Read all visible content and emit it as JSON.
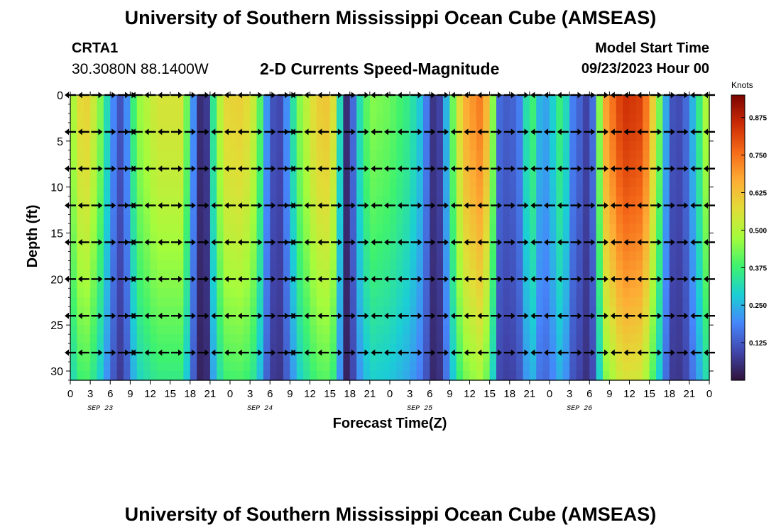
{
  "header": {
    "title": "University of Southern Mississippi Ocean Cube (AMSEAS)",
    "station_id": "CRTA1",
    "coordinates": "30.3080N  88.1400W",
    "subtitle": "2-D Currents Speed-Magnitude",
    "model_start_label": "Model Start Time",
    "model_start_value": "09/23/2023 Hour 00"
  },
  "footer": {
    "title": "University of Southern Mississippi Ocean Cube (AMSEAS)"
  },
  "colors": {
    "colormap": [
      "#30123b",
      "#4146ac",
      "#4686fb",
      "#1bcfd4",
      "#3ef26f",
      "#a4fc3c",
      "#e1dd37",
      "#fdad35",
      "#f66b19",
      "#cb2a04",
      "#7a0403"
    ],
    "arrow": "#000000",
    "axis": "#000000"
  },
  "chart_data": {
    "type": "heatmap",
    "title": "2-D Currents Speed-Magnitude",
    "xlabel": "Forecast Time(Z)",
    "ylabel": "Depth (ft)",
    "colorbar_label": "Knots",
    "colorbar_range": [
      0.0,
      0.95
    ],
    "colorbar_ticks": [
      0.125,
      0.25,
      0.375,
      0.5,
      0.625,
      0.75,
      0.875
    ],
    "colorbar_tick_labels": [
      "0.125",
      "0.250",
      "0.375",
      "0.500",
      "0.625",
      "0.750",
      "0.875"
    ],
    "x_hours_range": [
      0,
      96
    ],
    "y_range": [
      0,
      31
    ],
    "y_ticks": [
      0,
      5,
      10,
      15,
      20,
      25,
      30
    ],
    "y_tick_labels": [
      "0",
      "5",
      "10",
      "15",
      "20",
      "25",
      "30"
    ],
    "x_ticks_hours": [
      0,
      3,
      6,
      9,
      12,
      15,
      18,
      21,
      24,
      27,
      30,
      33,
      36,
      39,
      42,
      45,
      48,
      51,
      54,
      57,
      60,
      63,
      66,
      69,
      72,
      75,
      78,
      81,
      84,
      87,
      90,
      93,
      96
    ],
    "x_tick_labels": [
      "0",
      "3",
      "6",
      "9",
      "12",
      "15",
      "18",
      "21",
      "0",
      "3",
      "6",
      "9",
      "12",
      "15",
      "18",
      "21",
      "0",
      "3",
      "6",
      "9",
      "12",
      "15",
      "18",
      "21",
      "0",
      "3",
      "6",
      "9",
      "12",
      "15",
      "18",
      "21",
      "0"
    ],
    "date_labels": [
      {
        "hour": 4.5,
        "text": "SEP 23"
      },
      {
        "hour": 28.5,
        "text": "SEP 24"
      },
      {
        "hour": 52.5,
        "text": "SEP 25"
      },
      {
        "hour": 76.5,
        "text": "SEP 26"
      }
    ],
    "arrow_depths": [
      0,
      4,
      8,
      12,
      16,
      20,
      24,
      28
    ],
    "arrow_hours": [
      0,
      2,
      4,
      6,
      8,
      9,
      10,
      12,
      14,
      16,
      18,
      20,
      22,
      24,
      26,
      28,
      30,
      32,
      33,
      34,
      36,
      38,
      40,
      42,
      44,
      46,
      48,
      50,
      52,
      54,
      56,
      58,
      60,
      62,
      64,
      66,
      68,
      70,
      72,
      74,
      76,
      78,
      80,
      82,
      84,
      86,
      88,
      90,
      92,
      94,
      96
    ],
    "speed_profile_by_hour": [
      {
        "hour": 0,
        "knots": 0.45
      },
      {
        "hour": 2,
        "knots": 0.62
      },
      {
        "hour": 4,
        "knots": 0.5
      },
      {
        "hour": 5,
        "knots": 0.38
      },
      {
        "hour": 6,
        "knots": 0.25
      },
      {
        "hour": 7,
        "knots": 0.13
      },
      {
        "hour": 8,
        "knots": 0.1
      },
      {
        "hour": 9,
        "knots": 0.3
      },
      {
        "hour": 10,
        "knots": 0.45
      },
      {
        "hour": 13,
        "knots": 0.55
      },
      {
        "hour": 17,
        "knots": 0.55
      },
      {
        "hour": 18,
        "knots": 0.3
      },
      {
        "hour": 19,
        "knots": 0.1
      },
      {
        "hour": 19.8,
        "knots": 0.02
      },
      {
        "hour": 20.6,
        "knots": 0.08
      },
      {
        "hour": 21.5,
        "knots": 0.35
      },
      {
        "hour": 23,
        "knots": 0.58
      },
      {
        "hour": 26,
        "knots": 0.6
      },
      {
        "hour": 28,
        "knots": 0.5
      },
      {
        "hour": 29,
        "knots": 0.3
      },
      {
        "hour": 30,
        "knots": 0.12
      },
      {
        "hour": 31.5,
        "knots": 0.1
      },
      {
        "hour": 33,
        "knots": 0.25
      },
      {
        "hour": 34,
        "knots": 0.42
      },
      {
        "hour": 37,
        "knots": 0.6
      },
      {
        "hour": 39,
        "knots": 0.62
      },
      {
        "hour": 40,
        "knots": 0.5
      },
      {
        "hour": 40.8,
        "knots": 0.2
      },
      {
        "hour": 41.5,
        "knots": 0.05
      },
      {
        "hour": 42.5,
        "knots": 0.15
      },
      {
        "hour": 43.5,
        "knots": 0.32
      },
      {
        "hour": 45,
        "knots": 0.45
      },
      {
        "hour": 48,
        "knots": 0.42
      },
      {
        "hour": 51,
        "knots": 0.35
      },
      {
        "hour": 53,
        "knots": 0.25
      },
      {
        "hour": 54,
        "knots": 0.1
      },
      {
        "hour": 55,
        "knots": 0.03
      },
      {
        "hour": 56,
        "knots": 0.15
      },
      {
        "hour": 57,
        "knots": 0.35
      },
      {
        "hour": 59,
        "knots": 0.65
      },
      {
        "hour": 62,
        "knots": 0.75
      },
      {
        "hour": 63.5,
        "knots": 0.45
      },
      {
        "hour": 64.5,
        "knots": 0.15
      },
      {
        "hour": 66,
        "knots": 0.12
      },
      {
        "hour": 68,
        "knots": 0.2
      },
      {
        "hour": 69,
        "knots": 0.45
      },
      {
        "hour": 70,
        "knots": 0.3
      },
      {
        "hour": 71,
        "knots": 0.2
      },
      {
        "hour": 73,
        "knots": 0.32
      },
      {
        "hour": 74,
        "knots": 0.42
      },
      {
        "hour": 75,
        "knots": 0.2
      },
      {
        "hour": 77,
        "knots": 0.12
      },
      {
        "hour": 78,
        "knots": 0.06
      },
      {
        "hour": 79,
        "knots": 0.25
      },
      {
        "hour": 80,
        "knots": 0.65
      },
      {
        "hour": 83,
        "knots": 0.85
      },
      {
        "hour": 86,
        "knots": 0.82
      },
      {
        "hour": 87.5,
        "knots": 0.6
      },
      {
        "hour": 89,
        "knots": 0.35
      },
      {
        "hour": 90,
        "knots": 0.12
      },
      {
        "hour": 92,
        "knots": 0.1
      },
      {
        "hour": 94,
        "knots": 0.3
      },
      {
        "hour": 96,
        "knots": 0.55
      }
    ]
  }
}
